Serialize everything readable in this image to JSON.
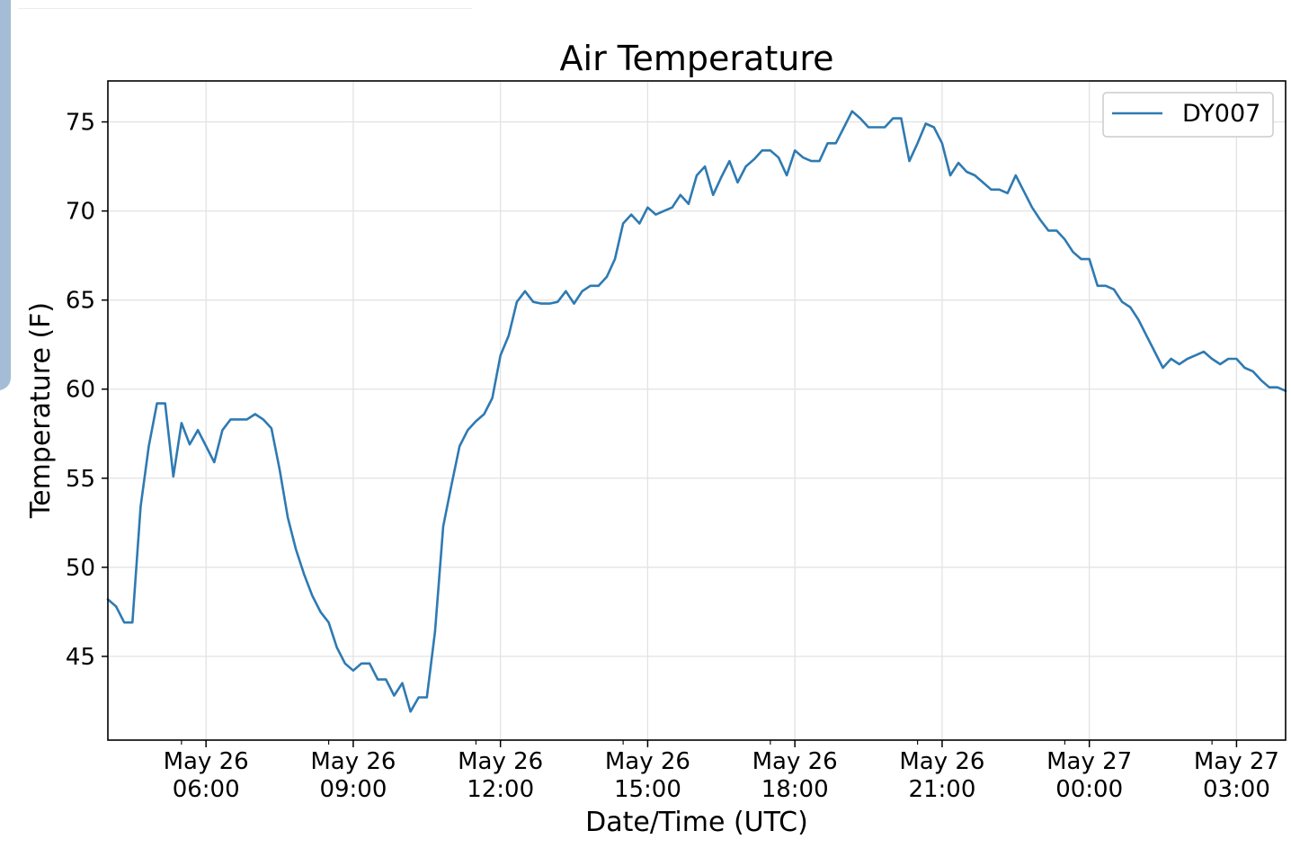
{
  "colors": {
    "series_line": "#2e7ab2",
    "axes": "#000000",
    "grid": "#e3e3e3",
    "legend_border": "#cccccc"
  },
  "chart_data": {
    "type": "line",
    "title": "Air Temperature",
    "xlabel": "Date/Time (UTC)",
    "ylabel": "Temperature (F)",
    "grid": true,
    "legend_position": "top-right",
    "x_unit": "UTC time",
    "xlim": [
      "May 26 04:00",
      "May 27 04:00"
    ],
    "ylim": [
      40.3,
      77.3
    ],
    "y_ticks": [
      45,
      50,
      55,
      60,
      65,
      70,
      75
    ],
    "x_ticks": [
      {
        "t": "May 26 06:00",
        "line1": "May 26",
        "line2": "06:00"
      },
      {
        "t": "May 26 09:00",
        "line1": "May 26",
        "line2": "09:00"
      },
      {
        "t": "May 26 12:00",
        "line1": "May 26",
        "line2": "12:00"
      },
      {
        "t": "May 26 15:00",
        "line1": "May 26",
        "line2": "15:00"
      },
      {
        "t": "May 26 18:00",
        "line1": "May 26",
        "line2": "18:00"
      },
      {
        "t": "May 26 21:00",
        "line1": "May 26",
        "line2": "21:00"
      },
      {
        "t": "May 27 00:00",
        "line1": "May 27",
        "line2": "00:00"
      },
      {
        "t": "May 27 03:00",
        "line1": "May 27",
        "line2": "03:00"
      }
    ],
    "series": [
      {
        "name": "DY007",
        "color": "#2e7ab2",
        "points": [
          [
            "May 26 04:00",
            48.2
          ],
          [
            "May 26 04:10",
            47.8
          ],
          [
            "May 26 04:20",
            46.9
          ],
          [
            "May 26 04:30",
            46.9
          ],
          [
            "May 26 04:40",
            53.4
          ],
          [
            "May 26 04:50",
            56.8
          ],
          [
            "May 26 05:00",
            59.2
          ],
          [
            "May 26 05:10",
            59.2
          ],
          [
            "May 26 05:20",
            55.1
          ],
          [
            "May 26 05:30",
            58.1
          ],
          [
            "May 26 05:40",
            56.9
          ],
          [
            "May 26 05:50",
            57.7
          ],
          [
            "May 26 06:00",
            56.8
          ],
          [
            "May 26 06:10",
            55.9
          ],
          [
            "May 26 06:20",
            57.7
          ],
          [
            "May 26 06:30",
            58.3
          ],
          [
            "May 26 06:40",
            58.3
          ],
          [
            "May 26 06:50",
            58.3
          ],
          [
            "May 26 07:00",
            58.6
          ],
          [
            "May 26 07:10",
            58.3
          ],
          [
            "May 26 07:20",
            57.8
          ],
          [
            "May 26 07:30",
            55.5
          ],
          [
            "May 26 07:40",
            52.8
          ],
          [
            "May 26 07:50",
            51.0
          ],
          [
            "May 26 08:00",
            49.6
          ],
          [
            "May 26 08:10",
            48.4
          ],
          [
            "May 26 08:20",
            47.5
          ],
          [
            "May 26 08:30",
            46.9
          ],
          [
            "May 26 08:40",
            45.5
          ],
          [
            "May 26 08:50",
            44.6
          ],
          [
            "May 26 09:00",
            44.2
          ],
          [
            "May 26 09:10",
            44.6
          ],
          [
            "May 26 09:20",
            44.6
          ],
          [
            "May 26 09:30",
            43.7
          ],
          [
            "May 26 09:40",
            43.7
          ],
          [
            "May 26 09:50",
            42.8
          ],
          [
            "May 26 10:00",
            43.5
          ],
          [
            "May 26 10:10",
            41.9
          ],
          [
            "May 26 10:20",
            42.7
          ],
          [
            "May 26 10:30",
            42.7
          ],
          [
            "May 26 10:40",
            46.4
          ],
          [
            "May 26 10:50",
            52.3
          ],
          [
            "May 26 11:00",
            54.6
          ],
          [
            "May 26 11:10",
            56.8
          ],
          [
            "May 26 11:20",
            57.7
          ],
          [
            "May 26 11:30",
            58.2
          ],
          [
            "May 26 11:40",
            58.6
          ],
          [
            "May 26 11:50",
            59.5
          ],
          [
            "May 26 12:00",
            61.9
          ],
          [
            "May 26 12:10",
            63.0
          ],
          [
            "May 26 12:20",
            64.9
          ],
          [
            "May 26 12:30",
            65.5
          ],
          [
            "May 26 12:40",
            64.9
          ],
          [
            "May 26 12:50",
            64.8
          ],
          [
            "May 26 13:00",
            64.8
          ],
          [
            "May 26 13:10",
            64.9
          ],
          [
            "May 26 13:20",
            65.5
          ],
          [
            "May 26 13:30",
            64.8
          ],
          [
            "May 26 13:40",
            65.5
          ],
          [
            "May 26 13:50",
            65.8
          ],
          [
            "May 26 14:00",
            65.8
          ],
          [
            "May 26 14:10",
            66.3
          ],
          [
            "May 26 14:20",
            67.3
          ],
          [
            "May 26 14:30",
            69.3
          ],
          [
            "May 26 14:40",
            69.8
          ],
          [
            "May 26 14:50",
            69.3
          ],
          [
            "May 26 15:00",
            70.2
          ],
          [
            "May 26 15:10",
            69.8
          ],
          [
            "May 26 15:20",
            70.0
          ],
          [
            "May 26 15:30",
            70.2
          ],
          [
            "May 26 15:40",
            70.9
          ],
          [
            "May 26 15:50",
            70.4
          ],
          [
            "May 26 16:00",
            72.0
          ],
          [
            "May 26 16:10",
            72.5
          ],
          [
            "May 26 16:20",
            70.9
          ],
          [
            "May 26 16:30",
            71.9
          ],
          [
            "May 26 16:40",
            72.8
          ],
          [
            "May 26 16:50",
            71.6
          ],
          [
            "May 26 17:00",
            72.5
          ],
          [
            "May 26 17:10",
            72.9
          ],
          [
            "May 26 17:20",
            73.4
          ],
          [
            "May 26 17:30",
            73.4
          ],
          [
            "May 26 17:40",
            73.0
          ],
          [
            "May 26 17:50",
            72.0
          ],
          [
            "May 26 18:00",
            73.4
          ],
          [
            "May 26 18:10",
            73.0
          ],
          [
            "May 26 18:20",
            72.8
          ],
          [
            "May 26 18:30",
            72.8
          ],
          [
            "May 26 18:40",
            73.8
          ],
          [
            "May 26 18:50",
            73.8
          ],
          [
            "May 26 19:00",
            74.7
          ],
          [
            "May 26 19:10",
            75.6
          ],
          [
            "May 26 19:20",
            75.2
          ],
          [
            "May 26 19:30",
            74.7
          ],
          [
            "May 26 19:40",
            74.7
          ],
          [
            "May 26 19:50",
            74.7
          ],
          [
            "May 26 20:00",
            75.2
          ],
          [
            "May 26 20:10",
            75.2
          ],
          [
            "May 26 20:20",
            72.8
          ],
          [
            "May 26 20:30",
            73.8
          ],
          [
            "May 26 20:40",
            74.9
          ],
          [
            "May 26 20:50",
            74.7
          ],
          [
            "May 26 21:00",
            73.8
          ],
          [
            "May 26 21:10",
            72.0
          ],
          [
            "May 26 21:20",
            72.7
          ],
          [
            "May 26 21:30",
            72.2
          ],
          [
            "May 26 21:40",
            72.0
          ],
          [
            "May 26 21:50",
            71.6
          ],
          [
            "May 26 22:00",
            71.2
          ],
          [
            "May 26 22:10",
            71.2
          ],
          [
            "May 26 22:20",
            71.0
          ],
          [
            "May 26 22:30",
            72.0
          ],
          [
            "May 26 22:40",
            71.1
          ],
          [
            "May 26 22:50",
            70.2
          ],
          [
            "May 26 23:00",
            69.5
          ],
          [
            "May 26 23:10",
            68.9
          ],
          [
            "May 26 23:20",
            68.9
          ],
          [
            "May 26 23:30",
            68.4
          ],
          [
            "May 26 23:40",
            67.7
          ],
          [
            "May 26 23:50",
            67.3
          ],
          [
            "May 27 00:00",
            67.3
          ],
          [
            "May 27 00:10",
            65.8
          ],
          [
            "May 27 00:20",
            65.8
          ],
          [
            "May 27 00:30",
            65.6
          ],
          [
            "May 27 00:40",
            64.9
          ],
          [
            "May 27 00:50",
            64.6
          ],
          [
            "May 27 01:00",
            63.9
          ],
          [
            "May 27 01:10",
            63.0
          ],
          [
            "May 27 01:20",
            62.1
          ],
          [
            "May 27 01:30",
            61.2
          ],
          [
            "May 27 01:40",
            61.7
          ],
          [
            "May 27 01:50",
            61.4
          ],
          [
            "May 27 02:00",
            61.7
          ],
          [
            "May 27 02:10",
            61.9
          ],
          [
            "May 27 02:20",
            62.1
          ],
          [
            "May 27 02:30",
            61.7
          ],
          [
            "May 27 02:40",
            61.4
          ],
          [
            "May 27 02:50",
            61.7
          ],
          [
            "May 27 03:00",
            61.7
          ],
          [
            "May 27 03:10",
            61.2
          ],
          [
            "May 27 03:20",
            61.0
          ],
          [
            "May 27 03:30",
            60.5
          ],
          [
            "May 27 03:40",
            60.1
          ],
          [
            "May 27 03:50",
            60.1
          ],
          [
            "May 27 04:00",
            59.9
          ]
        ]
      }
    ]
  }
}
